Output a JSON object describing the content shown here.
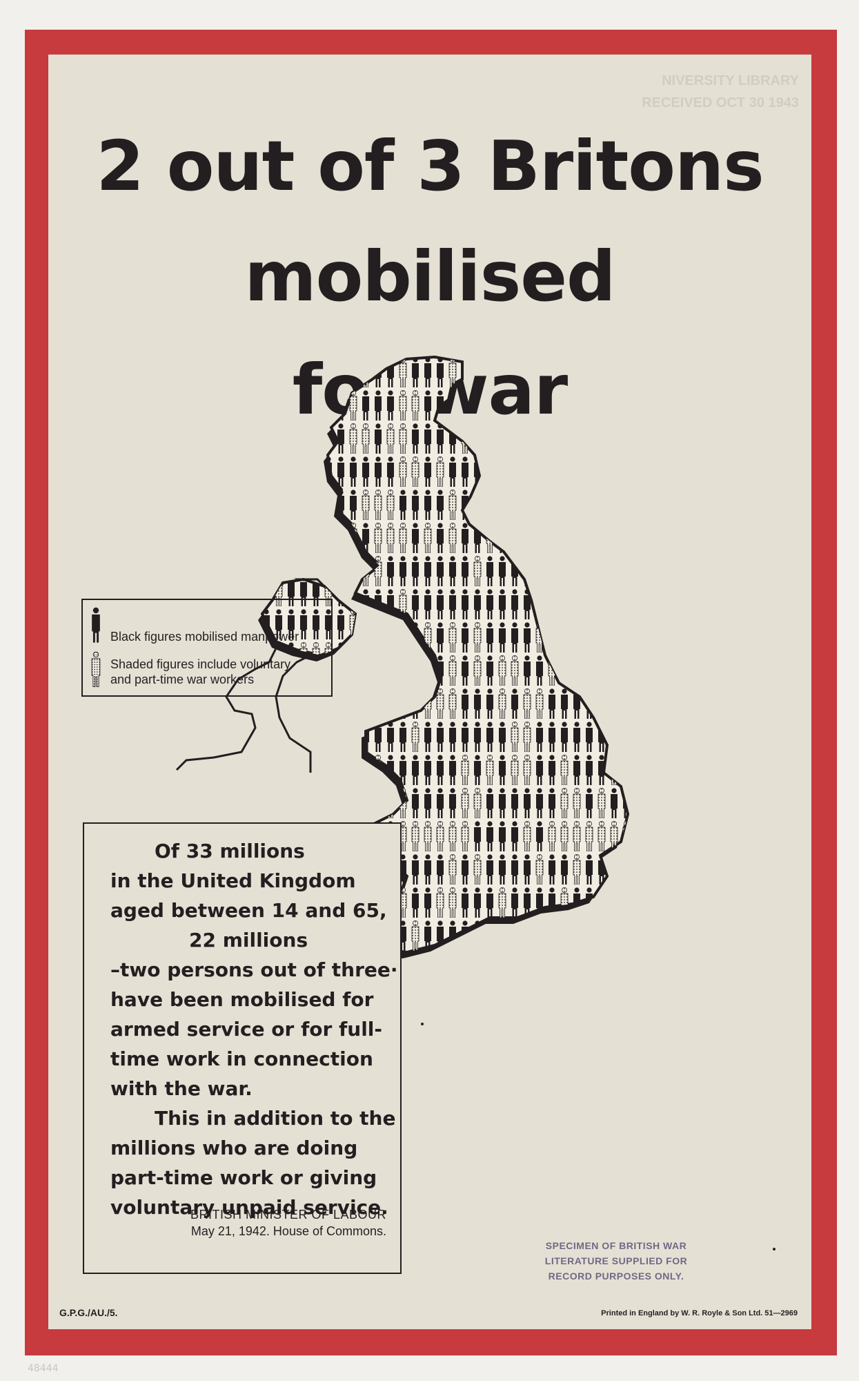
{
  "poster": {
    "headline": {
      "line1": "2 out of 3 Britons",
      "line2": "mobilised",
      "line3": "for war"
    },
    "faint_stamp": [
      "NIVERSITY LIBRARY",
      "RECEIVED OCT 30 1943"
    ],
    "legend": {
      "black_label": "Black figures mobilised manpower",
      "shaded_label_1": "Shaded figures include voluntary",
      "shaded_label_2": "and part-time war workers"
    },
    "quote": {
      "lines": [
        "Of 33 millions",
        "in the United Kingdom",
        "aged between 14 and 65,",
        "22 millions",
        "–two persons out of three·",
        "have been mobilised for",
        "armed service or for full-",
        "time work in connection",
        "with the war.",
        "This in addition to the",
        "millions who are doing",
        "part-time work or giving",
        "voluntary unpaid service."
      ],
      "attribution_1": "BRITISH MINISTER OF LABOUR",
      "attribution_2": "May 21, 1942.  House of Commons."
    },
    "stamp": {
      "line1": "SPECIMEN OF BRITISH WAR",
      "line2": "LITERATURE SUPPLIED FOR",
      "line3": "RECORD PURPOSES ONLY."
    },
    "footer": {
      "code": "G.P.G./AU./5.",
      "printer": "Printed in England by W. R. Royle & Son Ltd. 51—2969"
    },
    "pencil_mark": "48444"
  },
  "colors": {
    "border_red": "#c73a3d",
    "paper": "#e5e0d4",
    "ink": "#231f20",
    "stamp_ink": "#5a5577"
  },
  "icons": {
    "black_figure": "black-person-figure-icon",
    "shaded_figure": "shaded-person-figure-icon"
  }
}
